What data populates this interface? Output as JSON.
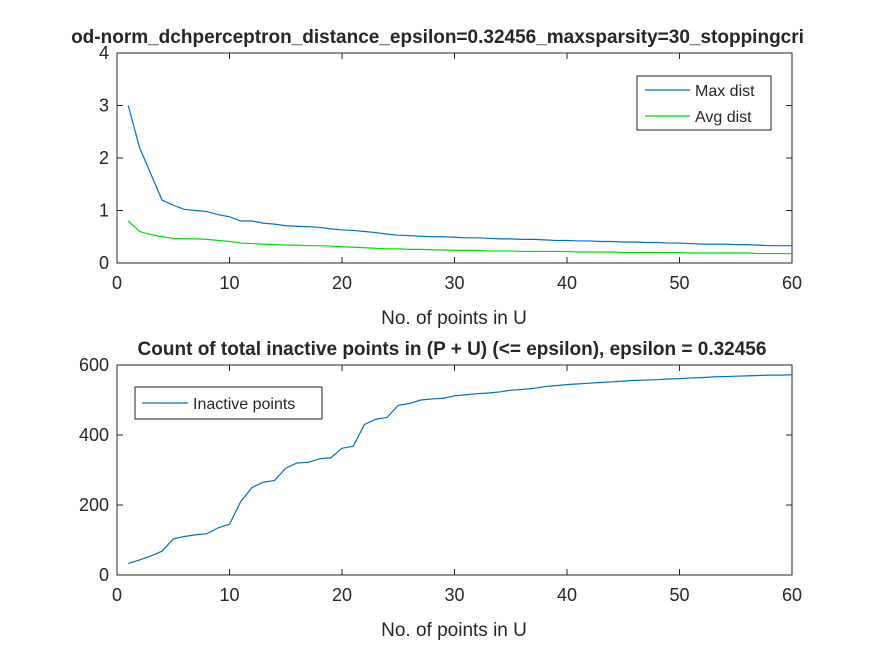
{
  "chart_data": [
    {
      "type": "line",
      "title": "od-norm_dchperceptron_distance_epsilon=0.32456_maxsparsity=30_stoppingcri",
      "xlabel": "No. of points in U",
      "ylabel": "",
      "xlim": [
        0,
        60
      ],
      "ylim": [
        0,
        4
      ],
      "xticks": [
        "0",
        "10",
        "20",
        "30",
        "40",
        "50",
        "60"
      ],
      "yticks": [
        "0",
        "1",
        "2",
        "3",
        "4"
      ],
      "legend_position": "top-right",
      "grid": false,
      "x": [
        1,
        2,
        3,
        4,
        5,
        6,
        7,
        8,
        9,
        10,
        11,
        12,
        13,
        14,
        15,
        16,
        17,
        18,
        19,
        20,
        21,
        22,
        23,
        24,
        25,
        26,
        27,
        28,
        29,
        30,
        31,
        32,
        33,
        34,
        35,
        36,
        37,
        38,
        39,
        40,
        41,
        42,
        43,
        44,
        45,
        46,
        47,
        48,
        49,
        50,
        51,
        52,
        53,
        54,
        55,
        56,
        57,
        58,
        59,
        60
      ],
      "series": [
        {
          "name": "Max dist",
          "color": "#0072BD",
          "values": [
            3.0,
            2.2,
            1.7,
            1.2,
            1.1,
            1.02,
            1.0,
            0.98,
            0.92,
            0.88,
            0.8,
            0.8,
            0.76,
            0.74,
            0.71,
            0.7,
            0.69,
            0.68,
            0.65,
            0.63,
            0.62,
            0.6,
            0.58,
            0.55,
            0.53,
            0.52,
            0.51,
            0.5,
            0.5,
            0.49,
            0.48,
            0.48,
            0.47,
            0.46,
            0.46,
            0.45,
            0.45,
            0.44,
            0.43,
            0.43,
            0.42,
            0.42,
            0.41,
            0.41,
            0.4,
            0.4,
            0.39,
            0.39,
            0.38,
            0.38,
            0.37,
            0.36,
            0.36,
            0.36,
            0.35,
            0.35,
            0.34,
            0.33,
            0.33,
            0.33
          ]
        },
        {
          "name": "Avg dist",
          "color": "#00DD00",
          "values": [
            0.8,
            0.6,
            0.54,
            0.5,
            0.47,
            0.46,
            0.46,
            0.45,
            0.43,
            0.41,
            0.38,
            0.37,
            0.36,
            0.35,
            0.34,
            0.34,
            0.33,
            0.33,
            0.32,
            0.31,
            0.3,
            0.29,
            0.28,
            0.27,
            0.27,
            0.26,
            0.26,
            0.25,
            0.25,
            0.24,
            0.24,
            0.24,
            0.23,
            0.23,
            0.23,
            0.22,
            0.22,
            0.22,
            0.22,
            0.22,
            0.21,
            0.21,
            0.21,
            0.21,
            0.2,
            0.2,
            0.2,
            0.2,
            0.2,
            0.2,
            0.19,
            0.19,
            0.19,
            0.19,
            0.19,
            0.19,
            0.18,
            0.18,
            0.18,
            0.18
          ]
        }
      ]
    },
    {
      "type": "line",
      "title": "Count of total inactive points in (P + U) (<= epsilon), epsilon = 0.32456",
      "xlabel": "No. of points in U",
      "ylabel": "",
      "xlim": [
        0,
        60
      ],
      "ylim": [
        0,
        600
      ],
      "xticks": [
        "0",
        "10",
        "20",
        "30",
        "40",
        "50",
        "60"
      ],
      "yticks": [
        "0",
        "200",
        "400",
        "600"
      ],
      "legend_position": "top-left",
      "grid": false,
      "x": [
        1,
        2,
        3,
        4,
        5,
        6,
        7,
        8,
        9,
        10,
        11,
        12,
        13,
        14,
        15,
        16,
        17,
        18,
        19,
        20,
        21,
        22,
        23,
        24,
        25,
        26,
        27,
        28,
        29,
        30,
        31,
        32,
        33,
        34,
        35,
        36,
        37,
        38,
        39,
        40,
        41,
        42,
        43,
        44,
        45,
        46,
        47,
        48,
        49,
        50,
        51,
        52,
        53,
        54,
        55,
        56,
        57,
        58,
        59,
        60
      ],
      "series": [
        {
          "name": "Inactive points",
          "color": "#0072BD",
          "values": [
            33,
            43,
            54,
            68,
            103,
            110,
            115,
            118,
            135,
            145,
            210,
            250,
            265,
            270,
            305,
            320,
            322,
            332,
            335,
            362,
            368,
            430,
            445,
            450,
            485,
            490,
            500,
            503,
            505,
            512,
            515,
            518,
            520,
            523,
            528,
            530,
            533,
            538,
            541,
            544,
            546,
            548,
            550,
            552,
            554,
            556,
            557,
            558,
            560,
            561,
            563,
            564,
            566,
            567,
            568,
            569,
            570,
            571,
            571,
            572
          ]
        }
      ]
    }
  ]
}
